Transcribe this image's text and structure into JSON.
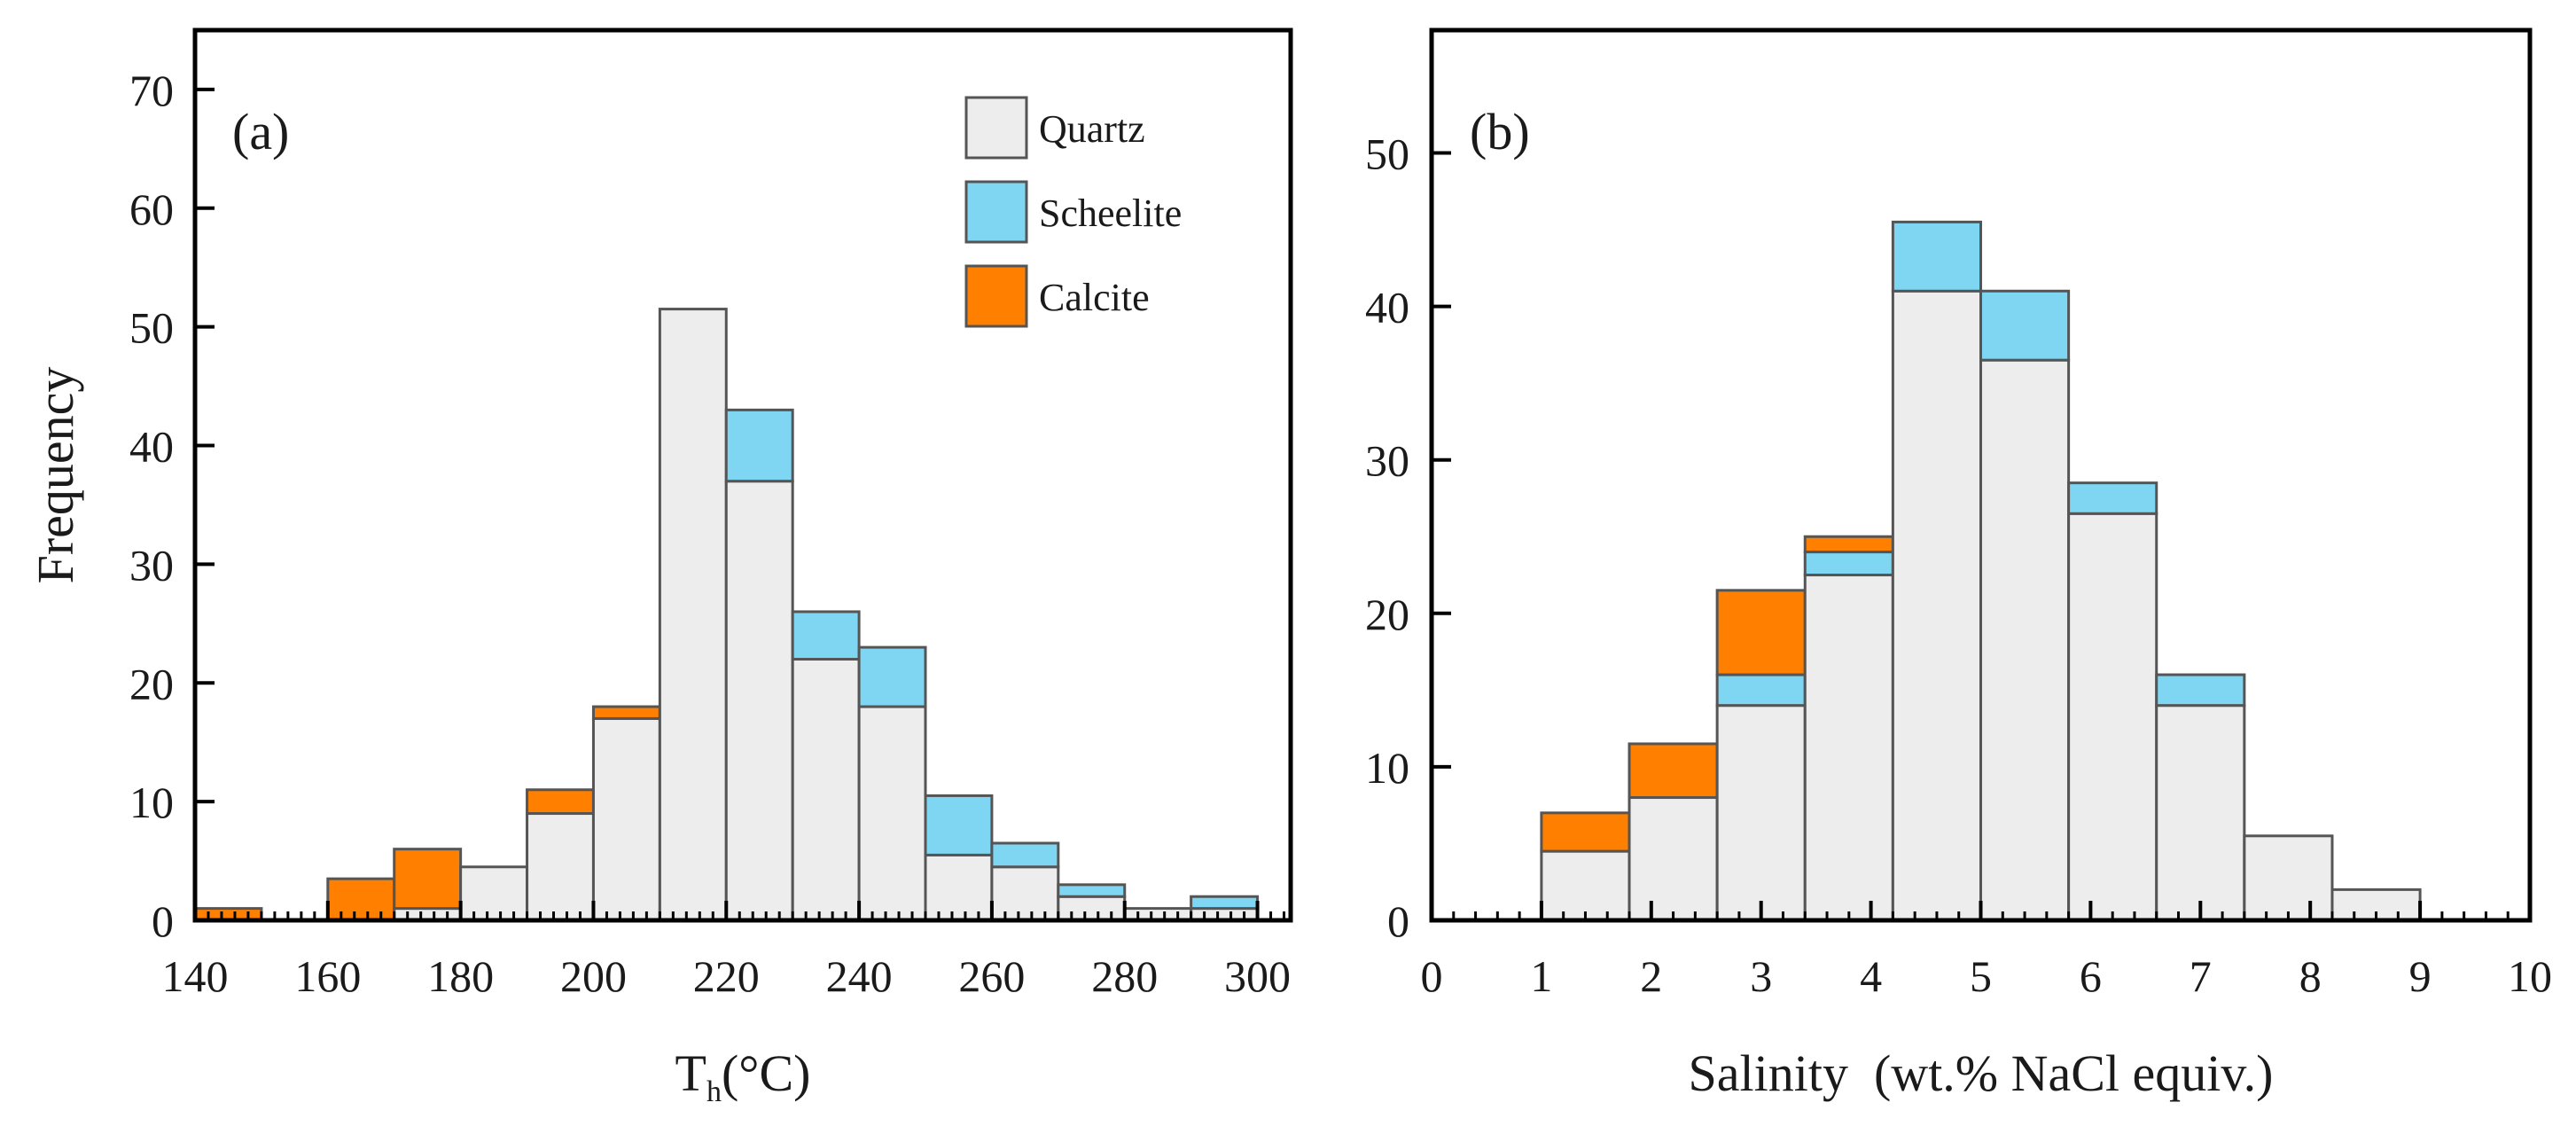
{
  "colors": {
    "quartz": "#ededed",
    "scheelite": "#7fd6f3",
    "calcite": "#ff7f00",
    "axis": "#000000",
    "bar_edge": "#555555"
  },
  "chart_data": [
    {
      "type": "bar",
      "panel_label": "(a)",
      "xlabel_main": "T",
      "xlabel_sub": "h",
      "xlabel_rest": "(°C)",
      "ylabel": "Frequency",
      "xlim": [
        140,
        305
      ],
      "ylim": [
        0,
        75
      ],
      "xticks": [
        140,
        160,
        180,
        200,
        220,
        240,
        260,
        280,
        300
      ],
      "yticks": [
        0,
        10,
        20,
        30,
        40,
        50,
        60,
        70
      ],
      "bin_edges": [
        140,
        150,
        160,
        170,
        180,
        190,
        200,
        210,
        220,
        230,
        240,
        250,
        260,
        270,
        280,
        290,
        300
      ],
      "series": [
        {
          "name": "Quartz",
          "key": "quartz",
          "values": [
            0,
            0,
            0,
            1,
            4.5,
            9,
            17,
            51.5,
            37,
            22,
            18,
            5.5,
            4.5,
            2,
            1,
            1
          ]
        },
        {
          "name": "Scheelite",
          "key": "scheelite",
          "values": [
            0,
            0,
            0,
            0,
            0,
            0,
            0,
            0,
            6,
            4,
            5,
            5,
            2,
            1,
            0,
            1
          ]
        },
        {
          "name": "Calcite",
          "key": "calcite",
          "values": [
            1,
            0,
            3.5,
            5,
            0,
            2,
            1,
            0,
            0,
            0,
            0,
            0,
            0,
            0,
            0,
            0
          ]
        }
      ],
      "legend": [
        "Quartz",
        "Scheelite",
        "Calcite"
      ],
      "legend_position": "top-right"
    },
    {
      "type": "bar",
      "panel_label": "(b)",
      "xlabel": "Salinity  (wt.% NaCl equiv.)",
      "ylabel": "",
      "xlim": [
        0,
        10
      ],
      "ylim": [
        0,
        58
      ],
      "xticks": [
        0,
        1,
        2,
        3,
        4,
        5,
        6,
        7,
        8,
        9,
        10
      ],
      "yticks": [
        0,
        10,
        20,
        30,
        40,
        50
      ],
      "bin_edges": [
        1,
        1.8,
        2.6,
        3.4,
        4.2,
        5.0,
        5.8,
        6.6,
        7.4,
        8.2,
        9.0
      ],
      "series": [
        {
          "name": "Quartz",
          "key": "quartz",
          "values": [
            4.5,
            8,
            14,
            22.5,
            41,
            36.5,
            26.5,
            14,
            5.5,
            2
          ]
        },
        {
          "name": "Scheelite",
          "key": "scheelite",
          "values": [
            0,
            0,
            2,
            1.5,
            4.5,
            4.5,
            2,
            2,
            0,
            0
          ]
        },
        {
          "name": "Calcite",
          "key": "calcite",
          "values": [
            2.5,
            3.5,
            5.5,
            1,
            0,
            0,
            0,
            0,
            0,
            0
          ]
        }
      ]
    }
  ]
}
